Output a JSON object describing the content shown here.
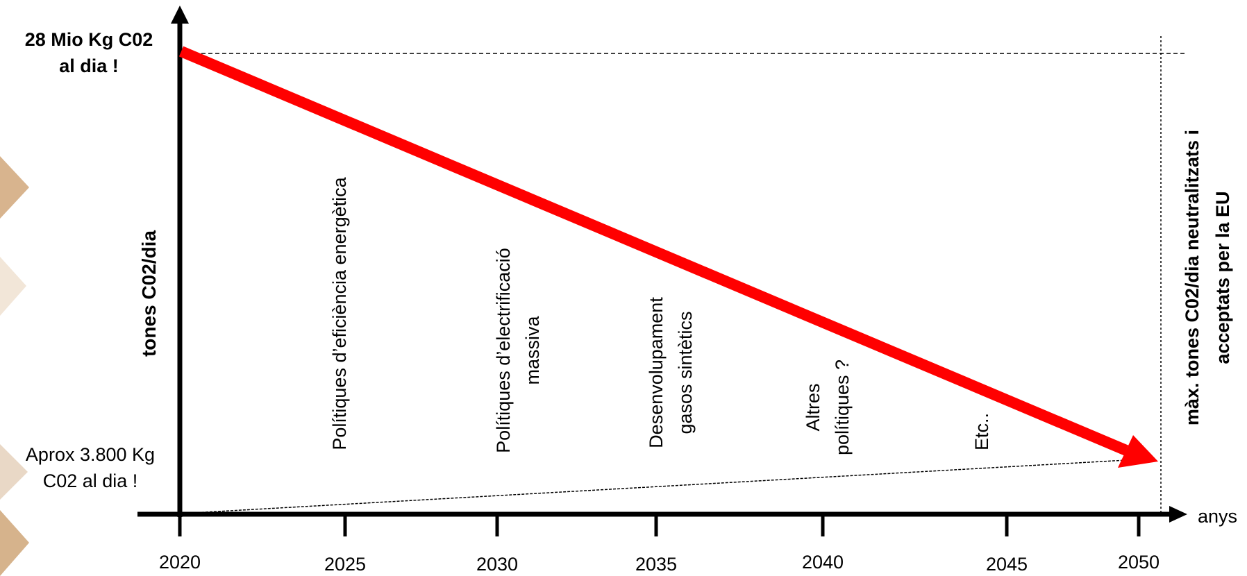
{
  "colors": {
    "reduction_arrow": "#ff0000",
    "axes": "#000000",
    "decorative_chevrons": [
      "#d8b48e",
      "#f2e6d8",
      "#e9d8c6",
      "#d6b38c"
    ]
  },
  "diagram": {
    "top_value_label": [
      "28 Mio Kg C02",
      "al dia !"
    ],
    "bottom_value_label": [
      "Aprox 3.800 Kg",
      "C02 al dia !"
    ],
    "y_axis_label": "tones C02/dia",
    "x_axis_label": "anys",
    "right_label": [
      "màx. tones C02/dia  neutralitzats i",
      "acceptats per la EU"
    ],
    "years": [
      "2020",
      "2025",
      "2030",
      "2035",
      "2040",
      "2045",
      "2050"
    ],
    "policies": [
      [
        "Polítiques d’eficiència energètica"
      ],
      [
        "Polítiques d’electrificació",
        "massiva"
      ],
      [
        "Desenvolupament",
        "gasos sintètics"
      ],
      [
        "Altres",
        "polítiques ?"
      ],
      [
        "Etc.."
      ]
    ]
  }
}
